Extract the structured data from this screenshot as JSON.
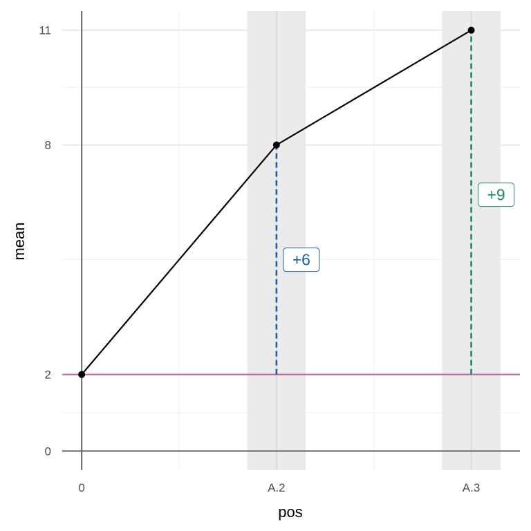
{
  "chart_data": {
    "type": "line",
    "title": "",
    "xlabel": "pos",
    "ylabel": "mean",
    "x_categories": [
      "0",
      "A.2",
      "A.3"
    ],
    "x_minor_ticks": [
      0.5,
      1.5
    ],
    "y_ticks": [
      0,
      2,
      8,
      11
    ],
    "y_minor_ticks": [
      1,
      5,
      9.5
    ],
    "ylim": [
      -0.5,
      11.5
    ],
    "xlim": [
      -0.1,
      2.25
    ],
    "grid": true,
    "legend": "none",
    "series": [
      {
        "points": [
          {
            "x": "0",
            "y": 2
          },
          {
            "x": "A.2",
            "y": 8
          },
          {
            "x": "A.3",
            "y": 11
          }
        ],
        "color": "#000000"
      }
    ],
    "highlight_bands": [
      {
        "x": "A.2",
        "half_width": 0.15,
        "color": "#ebebeb"
      },
      {
        "x": "A.3",
        "half_width": 0.15,
        "color": "#ebebeb"
      }
    ],
    "reference_line": {
      "y": 2,
      "color": "#c1649b"
    },
    "annotations": [
      {
        "x": "A.2",
        "from": 2,
        "to": 8,
        "label": "+6",
        "label_y": 5,
        "color": "#1a5fa3"
      },
      {
        "x": "A.3",
        "from": 2,
        "to": 11,
        "label": "+9",
        "label_y": 6.7,
        "color": "#1d8a62"
      }
    ]
  }
}
